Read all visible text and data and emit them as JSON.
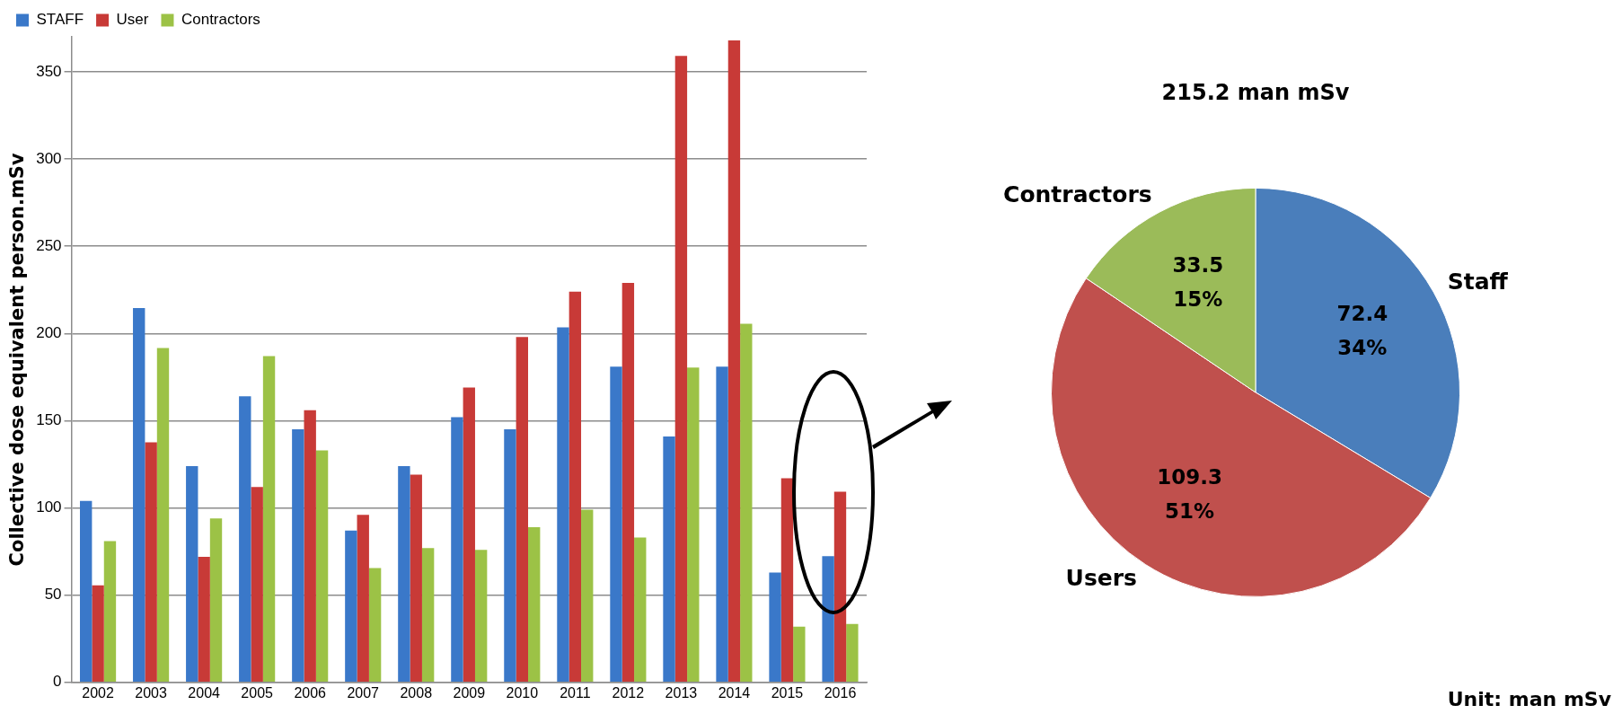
{
  "chart_data": [
    {
      "type": "bar",
      "ylabel": "Collective dose equivalent person.mSv",
      "categories": [
        "2002",
        "2003",
        "2004",
        "2005",
        "2006",
        "2007",
        "2008",
        "2009",
        "2010",
        "2011",
        "2012",
        "2013",
        "2014",
        "2015",
        "2016"
      ],
      "series": [
        {
          "name": "STAFF",
          "color": "#3a78c9",
          "values": [
            104,
            214.5,
            124,
            164,
            145,
            87,
            124,
            152,
            145,
            203.5,
            181,
            141,
            181,
            63,
            72.4
          ]
        },
        {
          "name": "User",
          "color": "#c83a37",
          "values": [
            55.6,
            137.6,
            72,
            112,
            156,
            96,
            119,
            169,
            198,
            224,
            229,
            359,
            368,
            117,
            109.3
          ]
        },
        {
          "name": "Contractors",
          "color": "#9cc246",
          "values": [
            81,
            191.6,
            94,
            187,
            133,
            65.5,
            77,
            76,
            89,
            99,
            83,
            180.5,
            205.5,
            32,
            33.5
          ]
        }
      ],
      "ylim": [
        0,
        370
      ],
      "yticks": [
        0,
        50,
        100,
        150,
        200,
        250,
        300,
        350
      ],
      "grid": "y",
      "legend": "top left"
    },
    {
      "type": "pie",
      "title": "215.2 man mSv",
      "categories": [
        "Staff",
        "Users",
        "Contractors"
      ],
      "values": [
        72.4,
        109.3,
        33.5
      ],
      "colors": [
        "#4a7ebb",
        "#c0504d",
        "#9bbb59"
      ],
      "value_labels": [
        "72.4\n34%",
        "109.3\n51%",
        "33.5\n15%"
      ],
      "annotations": [
        "Unit: man mSv"
      ]
    }
  ]
}
